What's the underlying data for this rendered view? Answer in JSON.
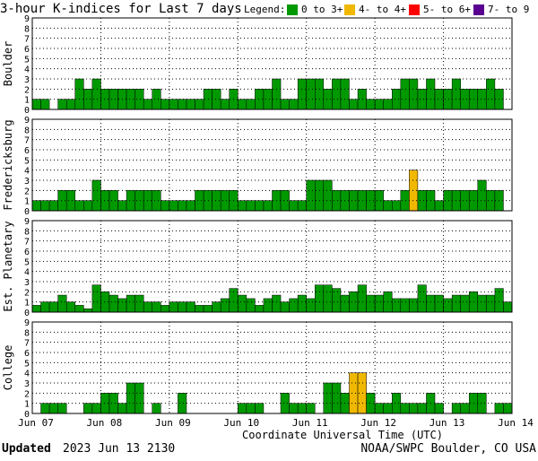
{
  "title": "3-hour K-indices for Last 7 days",
  "legend": {
    "label": "Legend:",
    "entries": [
      {
        "label": "0 to 3+",
        "color": "#009900"
      },
      {
        "label": "4- to 4+",
        "color": "#f0b800"
      },
      {
        "label": "5- to 6+",
        "color": "#ff0000"
      },
      {
        "label": "7- to 9",
        "color": "#5a0090"
      }
    ]
  },
  "xlabel": "Coordinate Universal Time (UTC)",
  "footer": {
    "updated_label": "Updated",
    "updated_time": "2023 Jun 13 2130",
    "source": "NOAA/SWPC Boulder, CO USA"
  },
  "chart_data": {
    "type": "bar",
    "ylim": [
      0,
      9
    ],
    "yticks": [
      "0",
      "1",
      "2",
      "3",
      "4",
      "5",
      "6",
      "7",
      "8",
      "9"
    ],
    "xticks": [
      "Jun 07",
      "Jun 08",
      "Jun 09",
      "Jun 10",
      "Jun 11",
      "Jun 12",
      "Jun 13",
      "Jun 14"
    ],
    "grid": true,
    "bars_per_day": 8,
    "days": 7,
    "panels": [
      {
        "name": "Boulder",
        "values": [
          1,
          1,
          0,
          1,
          1,
          3,
          2,
          3,
          2,
          2,
          2,
          2,
          2,
          1,
          2,
          1,
          1,
          1,
          1,
          1,
          2,
          2,
          1,
          2,
          1,
          1,
          2,
          2,
          3,
          1,
          1,
          3,
          3,
          3,
          2,
          3,
          3,
          1,
          2,
          1,
          1,
          1,
          2,
          3,
          3,
          2,
          3,
          2,
          2,
          3,
          2,
          2,
          2,
          3,
          2,
          0
        ]
      },
      {
        "name": "Fredericksburg",
        "values": [
          1,
          1,
          1,
          2,
          2,
          1,
          1,
          3,
          2,
          2,
          1,
          2,
          2,
          2,
          2,
          1,
          1,
          1,
          1,
          2,
          2,
          2,
          2,
          2,
          1,
          1,
          1,
          1,
          2,
          2,
          1,
          1,
          3,
          3,
          3,
          2,
          2,
          2,
          2,
          2,
          2,
          1,
          1,
          2,
          4,
          2,
          2,
          1,
          2,
          2,
          2,
          2,
          3,
          2,
          2,
          0
        ]
      },
      {
        "name": "Est. Planetary",
        "values": [
          0.67,
          1,
          1,
          1.67,
          1,
          0.67,
          0.33,
          2.67,
          2,
          1.67,
          1.33,
          1.67,
          1.67,
          1,
          1,
          0.67,
          1,
          1,
          1,
          0.67,
          0.67,
          1,
          1.33,
          2.33,
          1.67,
          1.33,
          0.67,
          1.33,
          1.67,
          1,
          1.33,
          1.67,
          1.33,
          2.67,
          2.67,
          2.33,
          1.67,
          2,
          2.67,
          1.67,
          1.67,
          2,
          1.33,
          1.33,
          1.33,
          2.67,
          1.67,
          1.67,
          1.33,
          1.67,
          1.67,
          2,
          1.67,
          1.67,
          2.33,
          1
        ]
      },
      {
        "name": "College",
        "values": [
          0,
          1,
          1,
          1,
          0,
          0,
          1,
          1,
          2,
          2,
          1,
          3,
          3,
          0,
          1,
          0,
          0,
          2,
          0,
          0,
          0,
          0,
          0,
          0,
          1,
          1,
          1,
          0,
          0,
          2,
          1,
          1,
          1,
          0,
          3,
          3,
          2,
          4,
          4,
          2,
          1,
          1,
          2,
          1,
          1,
          1,
          2,
          1,
          0,
          1,
          1,
          2,
          2,
          0,
          1,
          1
        ]
      }
    ]
  }
}
